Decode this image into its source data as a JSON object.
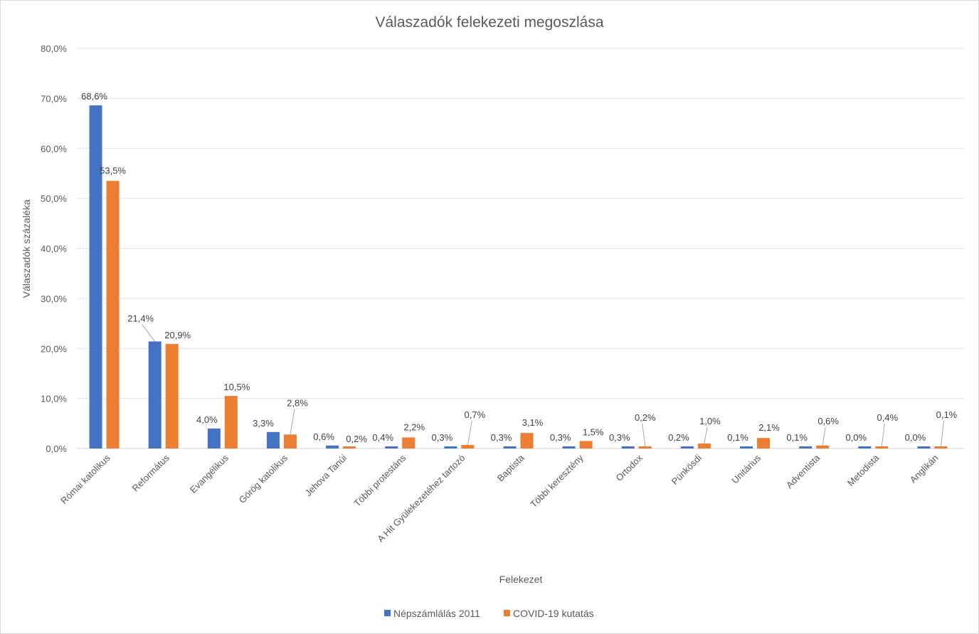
{
  "chart_data": {
    "type": "bar",
    "title": "Válaszadók felekezeti megoszlása",
    "xlabel": "Felekezet",
    "ylabel": "Válaszadók százaléka",
    "ylim": [
      0,
      80
    ],
    "yticks": [
      0,
      10,
      20,
      30,
      40,
      50,
      60,
      70,
      80
    ],
    "ytick_labels": [
      "0,0%",
      "10,0%",
      "20,0%",
      "30,0%",
      "40,0%",
      "50,0%",
      "60,0%",
      "70,0%",
      "80,0%"
    ],
    "grid": true,
    "legend_position": "bottom",
    "categories": [
      "Római katolikus",
      "Református",
      "Evangélikus",
      "Görög katolikus",
      "Jehova Tanúi",
      "Többi protestáns",
      "A Hit Gyülekezetéhez tartozó",
      "Baptista",
      "Többi keresztény",
      "Ortodox",
      "Pünkösdi",
      "Unitárius",
      "Adventista",
      "Metodista",
      "Anglikán"
    ],
    "series": [
      {
        "name": "Népszámlálás 2011",
        "color": "#4472c4",
        "values": [
          68.6,
          21.4,
          4.0,
          3.3,
          0.6,
          0.4,
          0.3,
          0.3,
          0.3,
          0.3,
          0.2,
          0.1,
          0.1,
          0.0,
          0.0
        ],
        "labels": [
          "68,6%",
          "21,4%",
          "4,0%",
          "3,3%",
          "0,6%",
          "0,4%",
          "0,3%",
          "0,3%",
          "0,3%",
          "0,3%",
          "0,2%",
          "0,1%",
          "0,1%",
          "0,0%",
          "0,0%"
        ]
      },
      {
        "name": "COVID-19 kutatás",
        "color": "#ed7d31",
        "values": [
          53.5,
          20.9,
          10.5,
          2.8,
          0.2,
          2.2,
          0.7,
          3.1,
          1.5,
          0.2,
          1.0,
          2.1,
          0.6,
          0.4,
          0.1
        ],
        "labels": [
          "53,5%",
          "20,9%",
          "10,5%",
          "2,8%",
          "0,2%",
          "2,2%",
          "0,7%",
          "3,1%",
          "1,5%",
          "0,2%",
          "1,0%",
          "2,1%",
          "0,6%",
          "0,4%",
          "0,1%"
        ]
      }
    ]
  }
}
